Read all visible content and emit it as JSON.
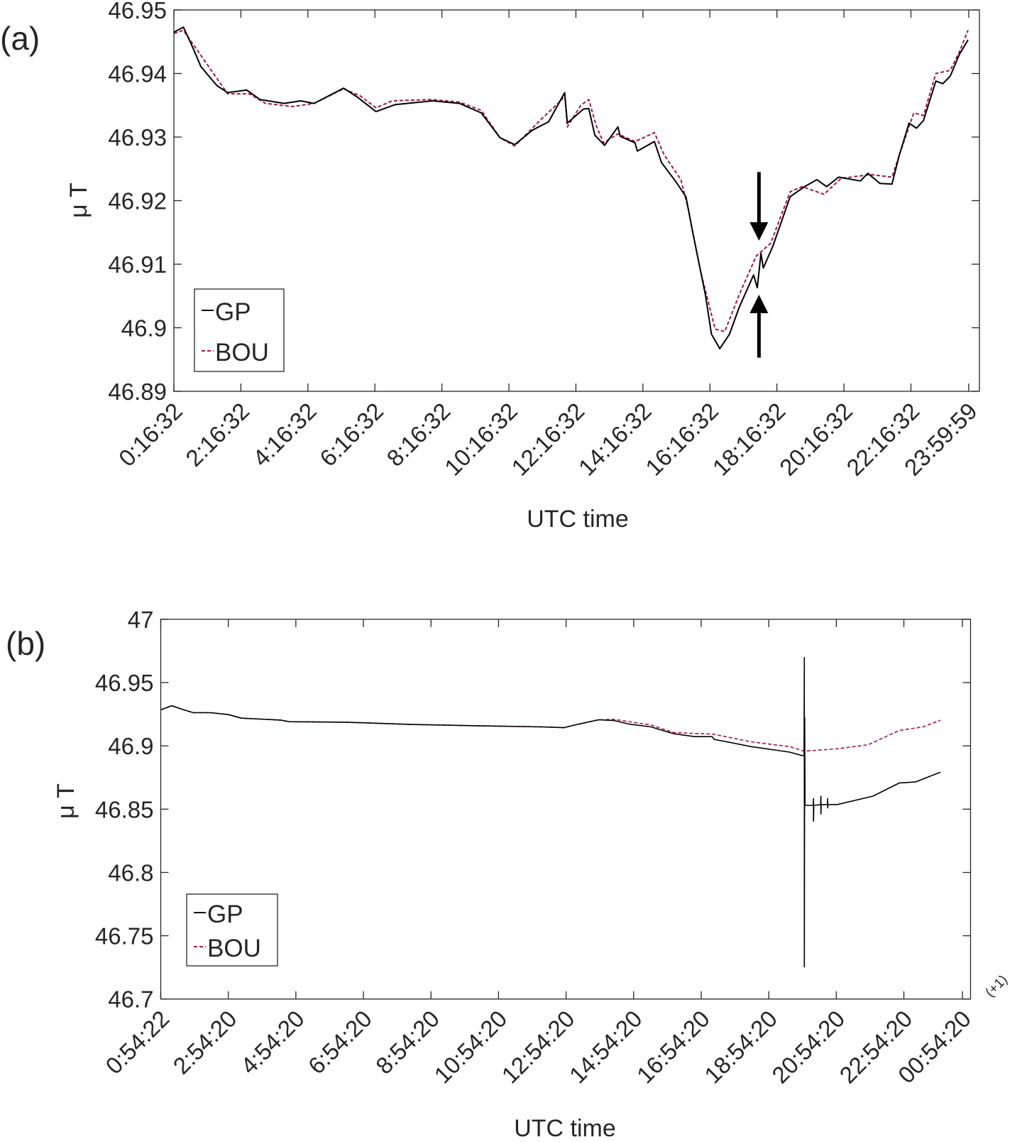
{
  "chart_data": [
    {
      "type": "line",
      "panel_label": "(a)",
      "xlabel": "UTC time",
      "ylabel": "μ T",
      "x_units": "hours since 0:00 UTC",
      "xlim": [
        0.2756,
        24.32
      ],
      "ylim": [
        46.89,
        46.95
      ],
      "grid": false,
      "legend_position": "bottom-left",
      "xticks": [
        0.2756,
        2.2756,
        4.2756,
        6.2756,
        8.2756,
        10.2756,
        12.2756,
        14.2756,
        16.2756,
        18.2756,
        20.2756,
        22.2756,
        24.0
      ],
      "xticklabels": [
        "0:16:32",
        "2:16:32",
        "4:16:32",
        "6:16:32",
        "8:16:32",
        "10:16:32",
        "12:16:32",
        "14:16:32",
        "16:16:32",
        "18:16:32",
        "20:16:32",
        "22:16:32",
        "23:59:59"
      ],
      "yticks": [
        46.89,
        46.9,
        46.91,
        46.92,
        46.93,
        46.94,
        46.95
      ],
      "yticklabels": [
        "46.89",
        "46.9",
        "46.91",
        "46.92",
        "46.93",
        "46.94",
        "46.95"
      ],
      "series": [
        {
          "name": "GP",
          "color": "#000000",
          "style": "solid",
          "x": [
            0.28,
            0.56,
            0.84,
            1.08,
            1.56,
            1.88,
            2.45,
            2.85,
            3.57,
            4.06,
            4.46,
            5.34,
            5.75,
            6.31,
            6.87,
            8.0,
            8.8,
            9.45,
            10.01,
            10.45,
            10.98,
            11.46,
            11.94,
            12.02,
            12.5,
            12.66,
            12.84,
            13.13,
            13.53,
            13.6,
            14.04,
            14.11,
            14.62,
            14.83,
            15.27,
            15.56,
            15.77,
            16.14,
            16.32,
            16.57,
            16.86,
            17.15,
            17.58,
            17.69,
            17.8,
            17.87,
            18.16,
            18.67,
            19.1,
            19.47,
            19.76,
            20.12,
            20.77,
            20.99,
            21.35,
            21.71,
            21.93,
            22.22,
            22.44,
            22.65,
            23.02,
            23.23,
            23.45,
            23.72,
            23.98
          ],
          "y": [
            46.9465,
            46.9473,
            46.9441,
            46.9411,
            46.9381,
            46.937,
            46.9374,
            46.9359,
            46.9353,
            46.9357,
            46.9353,
            46.9377,
            46.9363,
            46.934,
            46.9351,
            46.9357,
            46.9353,
            46.9338,
            46.9299,
            46.9288,
            46.9311,
            46.9324,
            46.937,
            46.9322,
            46.9344,
            46.9345,
            46.9303,
            46.9287,
            46.9316,
            46.9301,
            46.9291,
            46.9278,
            46.9293,
            46.926,
            46.9229,
            46.9206,
            46.9148,
            46.9052,
            46.899,
            46.8967,
            46.899,
            46.9032,
            46.9083,
            46.9063,
            46.9117,
            46.9094,
            46.9129,
            46.9206,
            46.9222,
            46.9233,
            46.9222,
            46.9237,
            46.9231,
            46.9243,
            46.9227,
            46.9226,
            46.9272,
            46.9322,
            46.9314,
            46.9326,
            46.9388,
            46.9384,
            46.9396,
            46.943,
            46.9453
          ]
        },
        {
          "name": "BOU",
          "color": "#a3193c",
          "style": "dashed",
          "x": [
            0.28,
            0.56,
            1.88,
            2.53,
            3.01,
            3.82,
            4.46,
            5.34,
            5.83,
            6.31,
            6.79,
            8.0,
            8.8,
            9.45,
            10.01,
            10.45,
            11.22,
            11.86,
            11.94,
            12.02,
            12.42,
            12.66,
            12.88,
            13.1,
            13.53,
            14.04,
            14.62,
            14.91,
            15.41,
            15.63,
            15.99,
            16.43,
            16.72,
            17.15,
            17.66,
            18.09,
            18.67,
            19.03,
            19.68,
            20.19,
            21.06,
            21.71,
            21.93,
            22.36,
            22.65,
            23.02,
            23.45,
            23.72,
            23.98
          ],
          "y": [
            46.9463,
            46.9468,
            46.9368,
            46.9368,
            46.9353,
            46.9348,
            46.9353,
            46.9376,
            46.9365,
            46.9346,
            46.9357,
            46.9359,
            46.9355,
            46.9342,
            46.9299,
            46.9286,
            46.9327,
            46.9359,
            46.9368,
            46.9316,
            46.935,
            46.9359,
            46.9318,
            46.9291,
            46.9305,
            46.9293,
            46.9307,
            46.9272,
            46.9233,
            46.9187,
            46.909,
            46.8998,
            46.8994,
            46.9052,
            46.9113,
            46.9133,
            46.9214,
            46.9222,
            46.921,
            46.9235,
            46.9241,
            46.9237,
            46.9272,
            46.9338,
            46.9334,
            46.94,
            46.9405,
            46.9434,
            46.9468
          ]
        }
      ],
      "annotations": [
        {
          "type": "arrow",
          "direction": "down",
          "x": 17.74,
          "y_from": 46.9245,
          "y_to": 46.9137
        },
        {
          "type": "arrow",
          "direction": "up",
          "x": 17.74,
          "y_from": 46.8953,
          "y_to": 46.9052
        }
      ]
    },
    {
      "type": "line",
      "panel_label": "(b)",
      "xlabel": "UTC time",
      "ylabel": "μ T",
      "x_units": "hours since 0:00 UTC",
      "xlim": [
        0.906,
        24.88
      ],
      "ylim": [
        46.7,
        47.0
      ],
      "grid": false,
      "legend_position": "bottom-left",
      "xticks": [
        0.906,
        2.906,
        4.906,
        6.906,
        8.906,
        10.906,
        12.906,
        14.906,
        16.906,
        18.906,
        20.906,
        22.906,
        24.64
      ],
      "xticklabels": [
        "0:54:22",
        "2:54:20",
        "4:54:20",
        "6:54:20",
        "8:54:20",
        "10:54:20",
        "12:54:20",
        "14:54:20",
        "16:54:20",
        "18:54:20",
        "20:54:20",
        "22:54:20",
        "00:54:20"
      ],
      "last_tick_note": "(+1)",
      "yticks": [
        46.7,
        46.75,
        46.8,
        46.85,
        46.9,
        46.95,
        47.0
      ],
      "yticklabels": [
        "46.7",
        "46.75",
        "46.8",
        "46.85",
        "46.9",
        "46.95",
        "47"
      ],
      "series": [
        {
          "name": "GP",
          "color": "#000000",
          "style": "solid",
          "x": [
            0.91,
            1.23,
            1.55,
            1.87,
            2.39,
            2.91,
            3.29,
            4.45,
            4.71,
            6.39,
            8.33,
            10.26,
            12.19,
            12.84,
            13.23,
            13.87,
            14.33,
            14.78,
            15.42,
            16.07,
            16.71,
            17.23,
            17.29,
            18.39,
            19.52,
            19.89,
            19.95,
            19.96,
            19.96,
            19.97,
            19.98,
            20.22,
            20.23,
            20.23,
            20.24,
            20.44,
            20.45,
            20.45,
            20.46,
            20.64,
            20.65,
            20.65,
            20.66,
            20.94,
            21.99,
            22.77,
            23.26,
            23.99
          ],
          "y": [
            46.9285,
            46.9317,
            46.9288,
            46.9262,
            46.9262,
            46.9247,
            46.9219,
            46.9204,
            46.9191,
            46.9187,
            46.9169,
            46.9159,
            46.915,
            46.9144,
            46.9169,
            46.9206,
            46.92,
            46.9172,
            46.915,
            46.9097,
            46.9073,
            46.9073,
            46.9051,
            46.8994,
            46.8951,
            46.8924,
            46.8924,
            46.9698,
            46.7254,
            46.9225,
            46.853,
            46.853,
            46.8584,
            46.8405,
            46.853,
            46.8535,
            46.8603,
            46.8462,
            46.8535,
            46.8537,
            46.8584,
            46.851,
            46.8537,
            46.8537,
            46.8603,
            46.8707,
            46.8716,
            46.8792
          ]
        },
        {
          "name": "BOU",
          "color": "#a3193c",
          "style": "dashed",
          "x": [
            0.91,
            1.23,
            1.55,
            1.87,
            2.39,
            2.91,
            3.29,
            4.45,
            4.71,
            6.39,
            8.33,
            10.26,
            12.19,
            12.84,
            13.23,
            13.87,
            14.33,
            14.78,
            15.42,
            16.07,
            16.71,
            17.23,
            18.39,
            19.52,
            19.96,
            20.94,
            21.85,
            22.77,
            23.47,
            23.99
          ],
          "y": [
            46.9285,
            46.9317,
            46.9288,
            46.9262,
            46.9262,
            46.9247,
            46.9219,
            46.9204,
            46.9191,
            46.9187,
            46.9169,
            46.9159,
            46.915,
            46.9144,
            46.9169,
            46.9206,
            46.921,
            46.9191,
            46.9165,
            46.9107,
            46.9098,
            46.9094,
            46.9032,
            46.8994,
            46.8958,
            46.8977,
            46.9009,
            46.9122,
            46.915,
            46.9203
          ]
        }
      ]
    }
  ]
}
